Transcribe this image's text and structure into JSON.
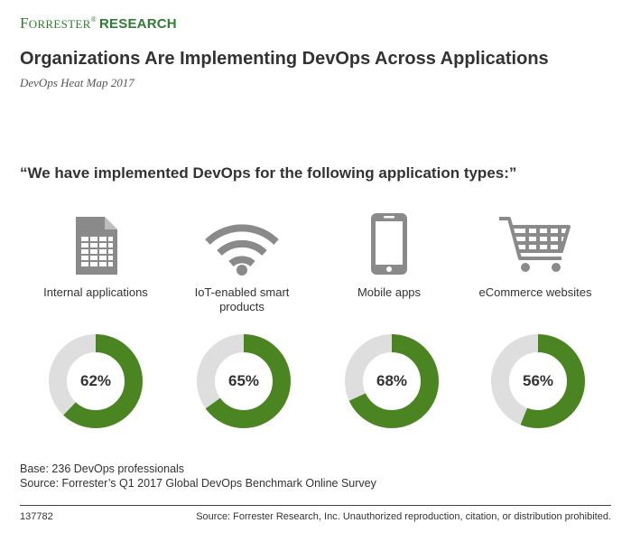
{
  "brand": {
    "f": "F",
    "orrester": "ORRESTER",
    "reg": "®",
    "research": "RESEARCH"
  },
  "header": {
    "title": "Organizations Are Implementing DevOps Across Applications",
    "subtitle": "DevOps Heat Map 2017"
  },
  "colors": {
    "accent": "#4a8522",
    "remainder": "#dedede",
    "brand": "#2e7d32"
  },
  "chart_data": {
    "type": "donut",
    "title": "“We have implemented DevOps for the following application types:”",
    "categories": [
      "Internal applications",
      "IoT-enabled smart products",
      "Mobile apps",
      "eCommerce websites"
    ],
    "values": [
      62,
      65,
      68,
      56
    ],
    "value_labels": [
      "62%",
      "65%",
      "68%",
      "56%"
    ],
    "unit": "%",
    "icons": [
      "spreadsheet-document-icon",
      "wifi-icon",
      "smartphone-icon",
      "shopping-cart-icon"
    ]
  },
  "notes": {
    "base": "Base: 236 DevOps professionals",
    "source": "Source: Forrester’s Q1 2017 Global DevOps Benchmark Online Survey"
  },
  "footer": {
    "doc_id": "137782",
    "copyright": "Source: Forrester Research, Inc. Unauthorized reproduction, citation, or distribution prohibited."
  }
}
